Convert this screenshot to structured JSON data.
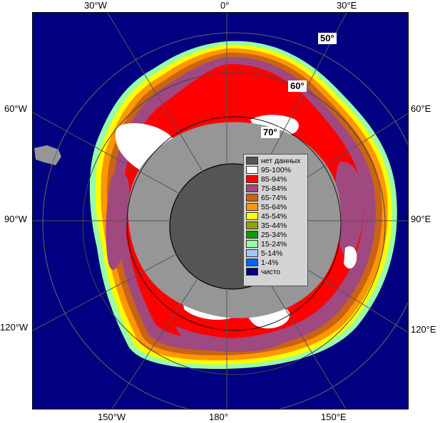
{
  "longitude_labels": {
    "top": [
      "30°W",
      "0°",
      "30°E"
    ],
    "left": [
      "60°W",
      "90°W",
      "120°W"
    ],
    "right": [
      "60°E",
      "90°E",
      "120°E"
    ],
    "bottom": [
      "150°W",
      "180°",
      "150°E"
    ]
  },
  "latitude_labels": [
    "50°",
    "60°",
    "70°"
  ],
  "legend": {
    "items": [
      {
        "label": "нет данных",
        "color": "#555555"
      },
      {
        "label": "95-100%",
        "color": "#ffffff"
      },
      {
        "label": "85-94%",
        "color": "#ff0000"
      },
      {
        "label": "75-84%",
        "color": "#a04880"
      },
      {
        "label": "65-74%",
        "color": "#c86414"
      },
      {
        "label": "55-64%",
        "color": "#ff9600"
      },
      {
        "label": "45-54%",
        "color": "#ffff00"
      },
      {
        "label": "35-44%",
        "color": "#96a000"
      },
      {
        "label": "25-34%",
        "color": "#00a000"
      },
      {
        "label": "15-24%",
        "color": "#96ffaa"
      },
      {
        "label": "5-14%",
        "color": "#a0c8ff"
      },
      {
        "label": "1-4%",
        "color": "#0064ff"
      },
      {
        "label": "чисто",
        "color": "#000080"
      }
    ]
  },
  "colors": {
    "ocean": "#000080",
    "land": "#969696",
    "no_data": "#555555",
    "ice_95_100": "#ffffff",
    "ice_85_94": "#ff0000",
    "ice_75_84": "#a04880",
    "ice_65_74": "#c86414",
    "ice_55_64": "#ff9600",
    "ice_45_54": "#ffff00",
    "ice_15_24": "#96ffaa"
  }
}
